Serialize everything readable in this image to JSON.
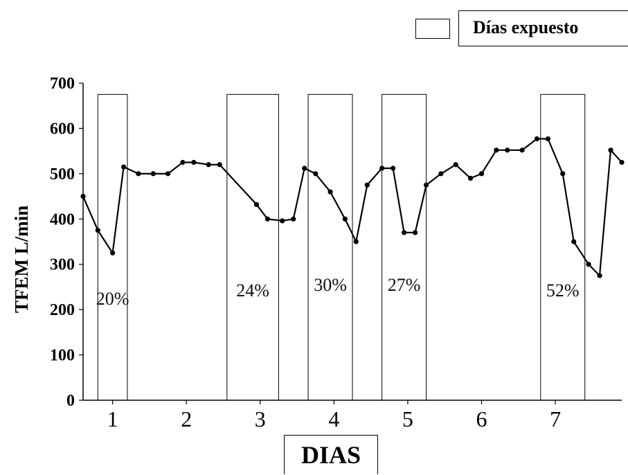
{
  "legend": {
    "label": "Días expuesto"
  },
  "chart_data": {
    "type": "line",
    "title": "",
    "xlabel": "DIAS",
    "ylabel": "TFEM L/min",
    "ylim": [
      0,
      700
    ],
    "yticks": [
      "0",
      "100",
      "200",
      "300",
      "400",
      "500",
      "600",
      "700"
    ],
    "categories": [
      "1",
      "2",
      "3",
      "4",
      "5",
      "6",
      "7"
    ],
    "xlim": [
      0.6,
      7.9
    ],
    "grid": false,
    "legend_position": "top-right",
    "series": [
      {
        "color": "#000000",
        "points": [
          [
            0.6,
            450
          ],
          [
            0.8,
            375
          ],
          [
            1.0,
            325
          ],
          [
            1.15,
            515
          ],
          [
            1.35,
            500
          ],
          [
            1.55,
            500
          ],
          [
            1.75,
            500
          ],
          [
            1.95,
            525
          ],
          [
            2.1,
            525
          ],
          [
            2.3,
            520
          ],
          [
            2.45,
            520
          ],
          [
            2.95,
            432
          ],
          [
            3.1,
            400
          ],
          [
            3.3,
            396
          ],
          [
            3.45,
            400
          ],
          [
            3.6,
            512
          ],
          [
            3.75,
            500
          ],
          [
            3.95,
            460
          ],
          [
            4.15,
            400
          ],
          [
            4.3,
            350
          ],
          [
            4.45,
            475
          ],
          [
            4.65,
            512
          ],
          [
            4.8,
            512
          ],
          [
            4.95,
            370
          ],
          [
            5.1,
            370
          ],
          [
            5.25,
            475
          ],
          [
            5.45,
            500
          ],
          [
            5.65,
            520
          ],
          [
            5.85,
            490
          ],
          [
            6.0,
            500
          ],
          [
            6.2,
            552
          ],
          [
            6.35,
            552
          ],
          [
            6.55,
            552
          ],
          [
            6.75,
            577
          ],
          [
            6.9,
            577
          ],
          [
            7.1,
            500
          ],
          [
            7.25,
            350
          ],
          [
            7.45,
            300
          ],
          [
            7.6,
            275
          ],
          [
            7.75,
            552
          ],
          [
            7.9,
            525
          ]
        ]
      }
    ],
    "exposure_periods": [
      {
        "x_start": 0.8,
        "x_end": 1.2,
        "label": "20%"
      },
      {
        "x_start": 2.55,
        "x_end": 3.25,
        "label": "24%"
      },
      {
        "x_start": 3.65,
        "x_end": 4.25,
        "label": "30%"
      },
      {
        "x_start": 4.65,
        "x_end": 5.25,
        "label": "27%"
      },
      {
        "x_start": 6.8,
        "x_end": 7.4,
        "label": "52%"
      }
    ]
  }
}
